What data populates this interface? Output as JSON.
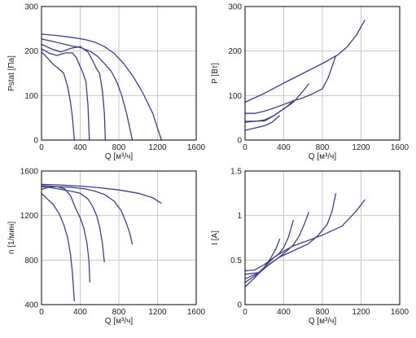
{
  "colors": {
    "curve": "#3c3f86",
    "grid": "#c8c8c8",
    "frame": "#000000",
    "text": "#222222"
  },
  "chart_data": [
    {
      "type": "line",
      "xlabel": "Q [м³/ч]",
      "ylabel": "Pstat [Па]",
      "xlim": [
        0,
        1600
      ],
      "ylim": [
        0,
        300
      ],
      "xticks": [
        "0",
        "400",
        "800",
        "1200",
        "1600"
      ],
      "yticks": [
        "0",
        "100",
        "200",
        "300"
      ],
      "grid": true,
      "series": [
        {
          "points": [
            [
              0,
              238
            ],
            [
              150,
              235
            ],
            [
              300,
              231
            ],
            [
              450,
              226
            ],
            [
              550,
              220
            ],
            [
              650,
              210
            ],
            [
              750,
              195
            ],
            [
              850,
              172
            ],
            [
              950,
              142
            ],
            [
              1050,
              105
            ],
            [
              1150,
              60
            ],
            [
              1240,
              0
            ]
          ]
        },
        {
          "points": [
            [
              0,
              227
            ],
            [
              150,
              220
            ],
            [
              300,
              212
            ],
            [
              400,
              208
            ],
            [
              500,
              200
            ],
            [
              580,
              188
            ],
            [
              650,
              172
            ],
            [
              720,
              155
            ],
            [
              780,
              130
            ],
            [
              830,
              100
            ],
            [
              880,
              60
            ],
            [
              940,
              0
            ]
          ]
        },
        {
          "points": [
            [
              0,
              215
            ],
            [
              100,
              205
            ],
            [
              200,
              198
            ],
            [
              300,
              206
            ],
            [
              400,
              210
            ],
            [
              480,
              198
            ],
            [
              530,
              178
            ],
            [
              570,
              160
            ],
            [
              600,
              150
            ],
            [
              630,
              110
            ],
            [
              650,
              60
            ],
            [
              660,
              0
            ]
          ]
        },
        {
          "points": [
            [
              0,
              205
            ],
            [
              80,
              195
            ],
            [
              160,
              190
            ],
            [
              250,
              196
            ],
            [
              320,
              196
            ],
            [
              360,
              185
            ],
            [
              400,
              165
            ],
            [
              430,
              150
            ],
            [
              460,
              130
            ],
            [
              480,
              80
            ],
            [
              495,
              0
            ]
          ]
        },
        {
          "points": [
            [
              0,
              198
            ],
            [
              60,
              185
            ],
            [
              120,
              170
            ],
            [
              180,
              160
            ],
            [
              230,
              150
            ],
            [
              270,
              120
            ],
            [
              300,
              85
            ],
            [
              320,
              50
            ],
            [
              340,
              0
            ]
          ]
        }
      ]
    },
    {
      "type": "line",
      "xlabel": "Q [м³/ч]",
      "ylabel": "P [Вт]",
      "xlim": [
        0,
        1600
      ],
      "ylim": [
        0,
        300
      ],
      "xticks": [
        "0",
        "400",
        "800",
        "1200",
        "1600"
      ],
      "yticks": [
        "0",
        "100",
        "200",
        "300"
      ],
      "grid": true,
      "series": [
        {
          "points": [
            [
              0,
              85
            ],
            [
              200,
              105
            ],
            [
              400,
              128
            ],
            [
              600,
              150
            ],
            [
              800,
              172
            ],
            [
              950,
              190
            ],
            [
              1050,
              208
            ],
            [
              1150,
              235
            ],
            [
              1240,
              270
            ]
          ]
        },
        {
          "points": [
            [
              0,
              60
            ],
            [
              100,
              60
            ],
            [
              200,
              65
            ],
            [
              300,
              72
            ],
            [
              400,
              80
            ],
            [
              500,
              88
            ],
            [
              600,
              95
            ],
            [
              700,
              104
            ],
            [
              800,
              115
            ],
            [
              860,
              140
            ],
            [
              900,
              165
            ],
            [
              940,
              190
            ]
          ]
        },
        {
          "points": [
            [
              0,
              42
            ],
            [
              200,
              43
            ],
            [
              300,
              55
            ],
            [
              400,
              70
            ],
            [
              500,
              85
            ],
            [
              560,
              100
            ],
            [
              620,
              115
            ],
            [
              660,
              127
            ]
          ]
        },
        {
          "points": [
            [
              0,
              40
            ],
            [
              100,
              42
            ],
            [
              200,
              45
            ],
            [
              300,
              55
            ],
            [
              400,
              70
            ],
            [
              460,
              80
            ],
            [
              500,
              90
            ]
          ]
        },
        {
          "points": [
            [
              0,
              22
            ],
            [
              100,
              27
            ],
            [
              200,
              32
            ],
            [
              280,
              40
            ],
            [
              330,
              50
            ],
            [
              360,
              55
            ]
          ]
        }
      ]
    },
    {
      "type": "line",
      "xlabel": "Q [м³/ч]",
      "ylabel": "n [1/мин]",
      "xlim": [
        0,
        1600
      ],
      "ylim": [
        400,
        1600
      ],
      "xticks": [
        "0",
        "400",
        "800",
        "1200",
        "1600"
      ],
      "yticks": [
        "400",
        "800",
        "1200",
        "1600"
      ],
      "grid": true,
      "series": [
        {
          "points": [
            [
              0,
              1480
            ],
            [
              200,
              1475
            ],
            [
              400,
              1465
            ],
            [
              600,
              1450
            ],
            [
              800,
              1430
            ],
            [
              1000,
              1400
            ],
            [
              1150,
              1360
            ],
            [
              1240,
              1310
            ]
          ]
        },
        {
          "points": [
            [
              0,
              1470
            ],
            [
              150,
              1460
            ],
            [
              300,
              1455
            ],
            [
              450,
              1440
            ],
            [
              550,
              1420
            ],
            [
              650,
              1390
            ],
            [
              750,
              1330
            ],
            [
              820,
              1250
            ],
            [
              870,
              1150
            ],
            [
              910,
              1050
            ],
            [
              940,
              940
            ]
          ]
        },
        {
          "points": [
            [
              0,
              1460
            ],
            [
              100,
              1450
            ],
            [
              200,
              1435
            ],
            [
              300,
              1420
            ],
            [
              400,
              1400
            ],
            [
              480,
              1350
            ],
            [
              530,
              1280
            ],
            [
              570,
              1200
            ],
            [
              600,
              1100
            ],
            [
              630,
              950
            ],
            [
              650,
              780
            ]
          ]
        },
        {
          "points": [
            [
              0,
              1435
            ],
            [
              80,
              1455
            ],
            [
              160,
              1460
            ],
            [
              240,
              1440
            ],
            [
              300,
              1380
            ],
            [
              350,
              1270
            ],
            [
              400,
              1180
            ],
            [
              440,
              1080
            ],
            [
              470,
              950
            ],
            [
              490,
              800
            ],
            [
              500,
              600
            ]
          ]
        },
        {
          "points": [
            [
              0,
              1400
            ],
            [
              60,
              1350
            ],
            [
              120,
              1300
            ],
            [
              180,
              1220
            ],
            [
              230,
              1120
            ],
            [
              270,
              1000
            ],
            [
              300,
              850
            ],
            [
              320,
              680
            ],
            [
              340,
              430
            ]
          ]
        }
      ]
    },
    {
      "type": "line",
      "xlabel": "Q [м³/ч]",
      "ylabel": "I [A]",
      "xlim": [
        0,
        1600
      ],
      "ylim": [
        0,
        1.5
      ],
      "xticks": [
        "0",
        "400",
        "800",
        "1200",
        "1600"
      ],
      "yticks": [
        "0",
        "0.5",
        "1",
        "1.5"
      ],
      "grid": true,
      "series": [
        {
          "points": [
            [
              0,
              0.38
            ],
            [
              100,
              0.39
            ],
            [
              200,
              0.45
            ],
            [
              300,
              0.53
            ],
            [
              400,
              0.6
            ],
            [
              500,
              0.66
            ],
            [
              600,
              0.7
            ],
            [
              800,
              0.78
            ],
            [
              1000,
              0.88
            ],
            [
              1150,
              1.05
            ],
            [
              1240,
              1.18
            ]
          ]
        },
        {
          "points": [
            [
              0,
              0.34
            ],
            [
              150,
              0.36
            ],
            [
              250,
              0.45
            ],
            [
              350,
              0.53
            ],
            [
              450,
              0.58
            ],
            [
              550,
              0.63
            ],
            [
              650,
              0.68
            ],
            [
              750,
              0.77
            ],
            [
              850,
              0.9
            ],
            [
              900,
              1.05
            ],
            [
              940,
              1.25
            ]
          ]
        },
        {
          "points": [
            [
              0,
              0.29
            ],
            [
              150,
              0.36
            ],
            [
              250,
              0.45
            ],
            [
              350,
              0.53
            ],
            [
              450,
              0.62
            ],
            [
              500,
              0.67
            ],
            [
              560,
              0.77
            ],
            [
              620,
              0.92
            ],
            [
              660,
              1.04
            ]
          ]
        },
        {
          "points": [
            [
              0,
              0.25
            ],
            [
              100,
              0.32
            ],
            [
              200,
              0.42
            ],
            [
              300,
              0.53
            ],
            [
              350,
              0.57
            ],
            [
              400,
              0.64
            ],
            [
              450,
              0.76
            ],
            [
              500,
              0.95
            ]
          ]
        },
        {
          "points": [
            [
              0,
              0.2
            ],
            [
              100,
              0.3
            ],
            [
              200,
              0.42
            ],
            [
              270,
              0.53
            ],
            [
              320,
              0.63
            ],
            [
              360,
              0.74
            ]
          ]
        }
      ]
    }
  ]
}
